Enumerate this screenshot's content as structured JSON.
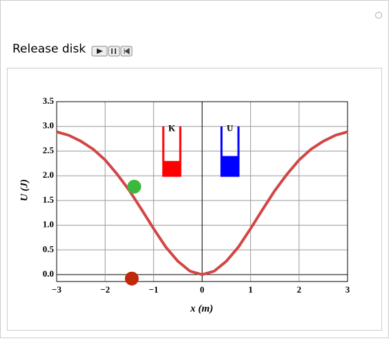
{
  "control_label": "Release disk",
  "chart_data": {
    "type": "line",
    "x_label": "x (m)",
    "y_label": "U (J)",
    "x": [
      -3,
      -2.75,
      -2.5,
      -2.25,
      -2,
      -1.75,
      -1.5,
      -1.25,
      -1,
      -0.75,
      -0.5,
      -0.25,
      0,
      0.25,
      0.5,
      0.75,
      1,
      1.25,
      1.5,
      1.75,
      2,
      2.25,
      2.5,
      2.75,
      3
    ],
    "series": [
      {
        "color": "#d24646",
        "values": [
          2.89,
          2.82,
          2.7,
          2.54,
          2.32,
          2.03,
          1.7,
          1.32,
          0.93,
          0.56,
          0.27,
          0.07,
          0,
          0.07,
          0.27,
          0.56,
          0.93,
          1.32,
          1.7,
          2.03,
          2.32,
          2.54,
          2.7,
          2.82,
          2.89
        ]
      }
    ],
    "disks": [
      {
        "color": "#3cb93c",
        "x": -1.4,
        "y": 1.78
      },
      {
        "color": "#c0280a",
        "x": -1.45,
        "y": -0.08
      }
    ],
    "energy_bars": [
      {
        "name": "K",
        "color": "#ff0000",
        "value": 2.3
      },
      {
        "name": "U",
        "color": "#0000ff",
        "value": 2.4
      }
    ],
    "xlim": [
      -3,
      3
    ],
    "ylim": [
      -0.14,
      3.5
    ],
    "xticks": [
      {
        "value": -3,
        "label": "−3"
      },
      {
        "value": -2,
        "label": "−2"
      },
      {
        "value": -1,
        "label": "−1"
      },
      0,
      1,
      2,
      3
    ],
    "yticks": [
      {
        "value": 0,
        "label": "0.0"
      },
      {
        "value": 0.5,
        "label": "0.5"
      },
      {
        "value": 1,
        "label": "1.0"
      },
      {
        "value": 1.5,
        "label": "1.5"
      },
      {
        "value": 2,
        "label": "2.0"
      },
      {
        "value": 2.5,
        "label": "2.5"
      },
      {
        "value": 3,
        "label": "3.0"
      },
      {
        "value": 3.5,
        "label": "3.5"
      }
    ],
    "grid": true
  }
}
